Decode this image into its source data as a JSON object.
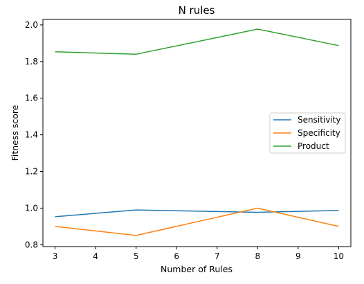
{
  "chart_data": {
    "type": "line",
    "title": "N rules",
    "xlabel": "Number of Rules",
    "ylabel": "Fitness score",
    "x": [
      3,
      5,
      8,
      10
    ],
    "xlim": [
      2.7,
      10.3
    ],
    "ylim": [
      0.79,
      2.03
    ],
    "xticks": [
      3,
      4,
      5,
      6,
      7,
      8,
      9,
      10
    ],
    "yticks": [
      0.8,
      1.0,
      1.2,
      1.4,
      1.6,
      1.8,
      2.0
    ],
    "ytick_labels": [
      "0.8",
      "1.0",
      "1.2",
      "1.4",
      "1.6",
      "1.8",
      "2.0"
    ],
    "grid": false,
    "legend_position": "center-right",
    "series": [
      {
        "name": "Sensitivity",
        "color": "#1f77b4",
        "values": [
          0.953,
          0.99,
          0.977,
          0.987
        ]
      },
      {
        "name": "Specificity",
        "color": "#ff7f0e",
        "values": [
          0.9,
          0.851,
          1.0,
          0.9
        ]
      },
      {
        "name": "Product",
        "color": "#2ca02c",
        "values": [
          1.853,
          1.84,
          1.977,
          1.887
        ]
      }
    ]
  }
}
